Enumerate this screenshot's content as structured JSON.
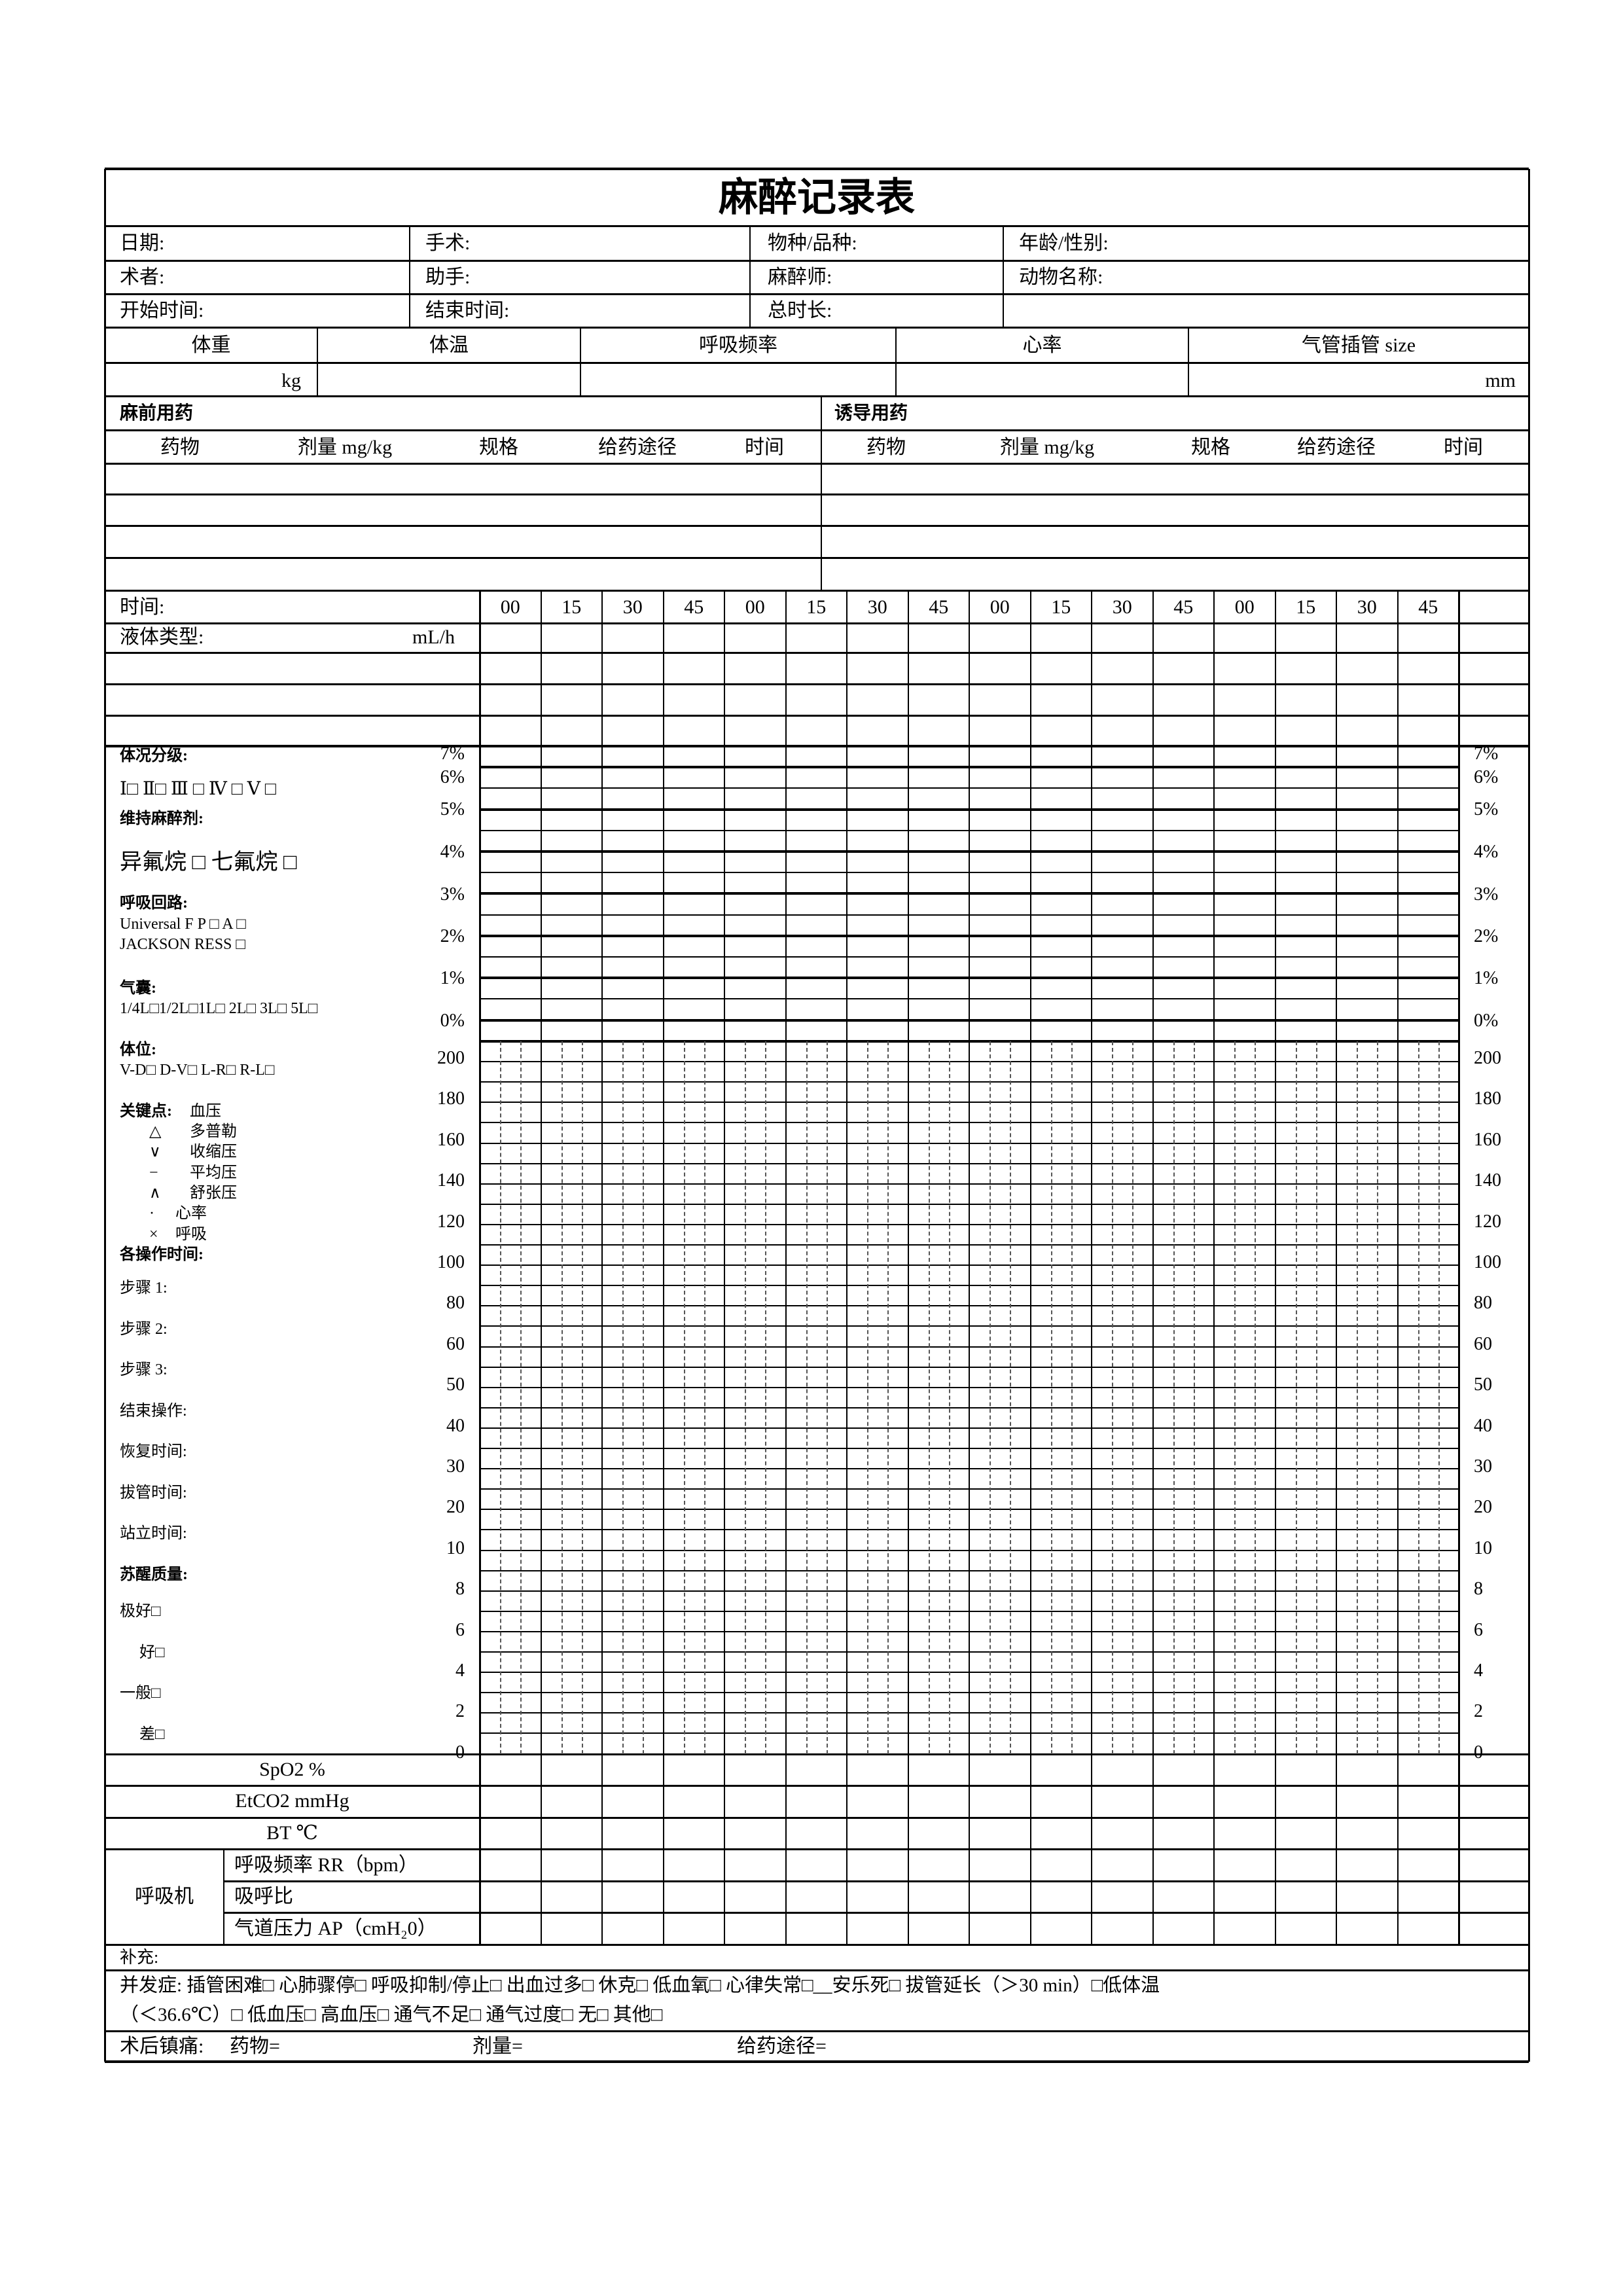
{
  "header": {
    "title": "麻醉记录表",
    "rows": [
      [
        "日期:",
        "手术:",
        "物种/品种:",
        "年龄/性别:"
      ],
      [
        "术者:",
        "助手:",
        "麻醉师:",
        "动物名称:"
      ],
      [
        "开始时间:",
        "结束时间:",
        "总时长:",
        ""
      ]
    ]
  },
  "vitals": {
    "headers": [
      "体重",
      "体温",
      "呼吸频率",
      "心率",
      "气管插管  size"
    ],
    "weight_unit": "kg",
    "tube_unit": "mm"
  },
  "drugs": {
    "premed_title": "麻前用药",
    "induction_title": "诱导用药",
    "columns": [
      "药物",
      "剂量 mg/kg",
      "规格",
      "给药途径",
      "时间"
    ]
  },
  "timeline": {
    "time_label": "时间:",
    "ticks": [
      "00",
      "15",
      "30",
      "45",
      "00",
      "15",
      "30",
      "45",
      "00",
      "15",
      "30",
      "45",
      "00",
      "15",
      "30",
      "45"
    ],
    "fluid_label": "液体类型:",
    "fluid_unit": "mL/h"
  },
  "gas_axis": [
    "7%",
    "6%",
    "5%",
    "4%",
    "3%",
    "2%",
    "1%",
    "0%"
  ],
  "bp_axis": [
    "200",
    "180",
    "160",
    "140",
    "120",
    "100",
    "80",
    "60",
    "50",
    "40",
    "30",
    "20",
    "10",
    "8",
    "6",
    "4",
    "2",
    "0"
  ],
  "left_panel": {
    "asa_title": "体况分级:",
    "asa_options": "Ⅰ□  Ⅱ□  Ⅲ  □  Ⅳ  □  Ⅴ  □",
    "maint_title": "维持麻醉剂:",
    "maint_options": "异氟烷  □      七氟烷  □",
    "circuit_title": "呼吸回路:",
    "circuit_1": "Universal F       P  □   A  □",
    "circuit_2": "JACKSON RESS            □",
    "bag_title": "气囊:",
    "bag_options": "1/4L□1/2L□1L□  2L□  3L□  5L□",
    "position_title": "体位:",
    "position_options": "V-D□     D-V□     L-R□  R-L□",
    "legend_title": "关键点:",
    "legend_bp": "血压",
    "legend": [
      {
        "symbol": "△",
        "label": "多普勒"
      },
      {
        "symbol": "∨",
        "label": "收缩压"
      },
      {
        "symbol": "−",
        "label": "平均压"
      },
      {
        "symbol": "∧",
        "label": "舒张压"
      },
      {
        "symbol": "·",
        "label": "心率"
      },
      {
        "symbol": "×",
        "label": "呼吸"
      }
    ],
    "ops_title": "各操作时间:",
    "ops": [
      "步骤 1:",
      "步骤 2:",
      "步骤 3:",
      "结束操作:",
      "恢复时间:",
      "拔管时间:",
      "站立时间:"
    ],
    "recovery_title": "苏醒质量:",
    "recovery": [
      "极好□",
      "好□",
      "一般□",
      "差□"
    ]
  },
  "monitor": {
    "spo2": "SpO2 %",
    "etco2": "EtCO2 mmHg",
    "bt": "BT  ℃",
    "ventilator": "呼吸机",
    "vent_rows": [
      "呼吸频率 RR（bpm）",
      "吸呼比",
      "气道压力 AP（cmH₂0）"
    ]
  },
  "footer": {
    "supplement": "补充:",
    "complications_1": "并发症:  插管困难□    心肺骤停□    呼吸抑制/停止□    出血过多□    休克□    低血氧□    心律失常□__安乐死□    拔管延长（＞30 min）□低体温",
    "complications_2": "（＜36.6℃）□     低血压□      高血压□      通气不足□      通气过度□      无□      其他□",
    "postop_label": "术后镇痛:",
    "postop_drug": "药物=",
    "postop_dose": "剂量=",
    "postop_route": "给药途径="
  }
}
